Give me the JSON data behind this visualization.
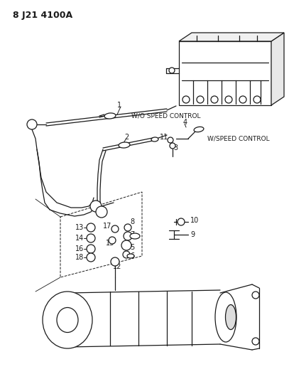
{
  "part_number": "8 J21 4100A",
  "background_color": "#ffffff",
  "line_color": "#1a1a1a",
  "fig_width": 4.07,
  "fig_height": 5.33,
  "dpi": 100
}
